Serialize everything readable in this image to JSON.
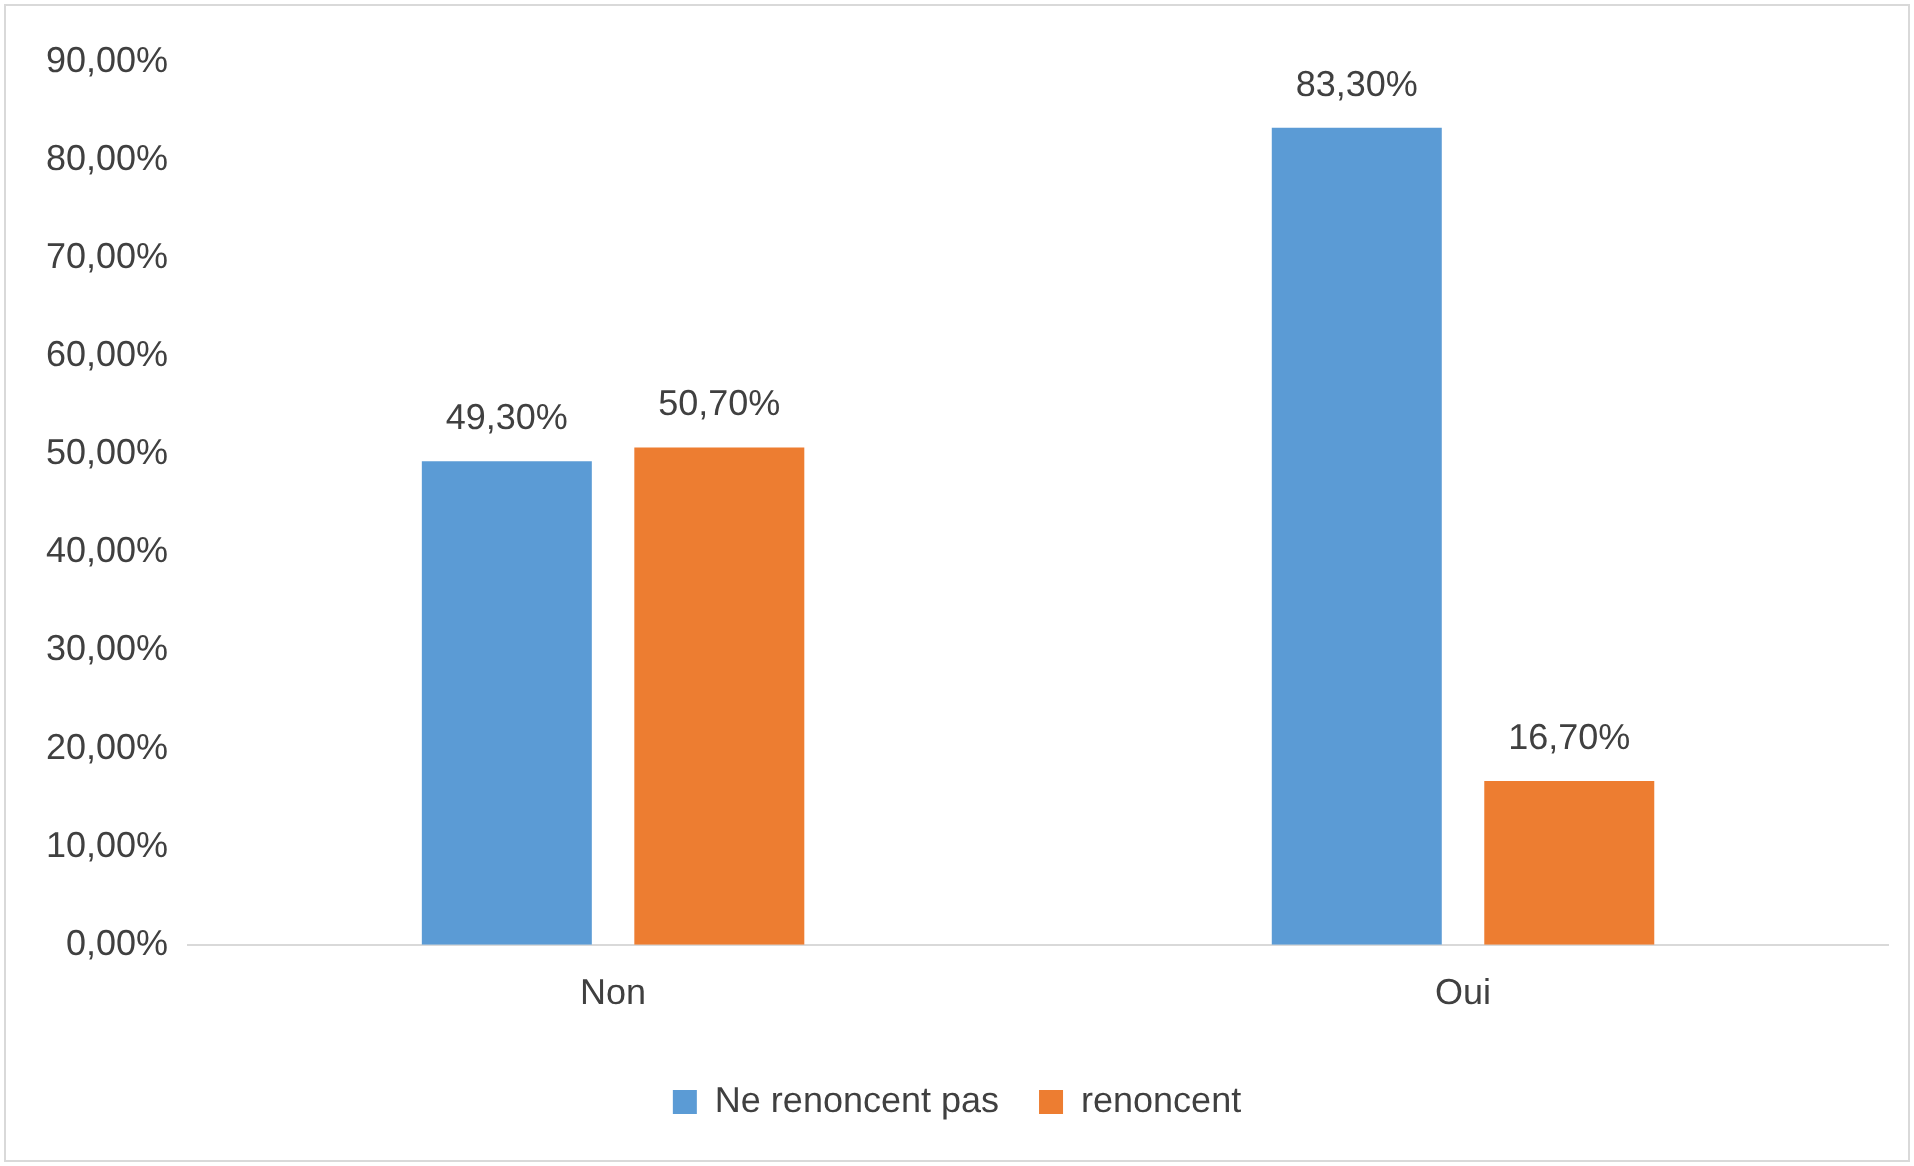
{
  "chart_data": {
    "type": "bar",
    "categories": [
      "Non",
      "Oui"
    ],
    "series": [
      {
        "name": "Ne renoncent pas",
        "color": "#5b9bd5",
        "values": [
          49.3,
          83.3
        ],
        "value_labels": [
          "49,30%",
          "83,30%"
        ]
      },
      {
        "name": "renoncent",
        "color": "#ed7d31",
        "values": [
          50.7,
          16.7
        ],
        "value_labels": [
          "50,70%",
          "16,70%"
        ]
      }
    ],
    "ylim": [
      0,
      90
    ],
    "yticks": [
      {
        "value": 0,
        "label": "0,00%"
      },
      {
        "value": 10,
        "label": "10,00%"
      },
      {
        "value": 20,
        "label": "20,00%"
      },
      {
        "value": 30,
        "label": "30,00%"
      },
      {
        "value": 40,
        "label": "40,00%"
      },
      {
        "value": 50,
        "label": "50,00%"
      },
      {
        "value": 60,
        "label": "60,00%"
      },
      {
        "value": 70,
        "label": "70,00%"
      },
      {
        "value": 80,
        "label": "80,00%"
      },
      {
        "value": 90,
        "label": "90,00%"
      }
    ],
    "grid": false,
    "legend": "bottom"
  }
}
